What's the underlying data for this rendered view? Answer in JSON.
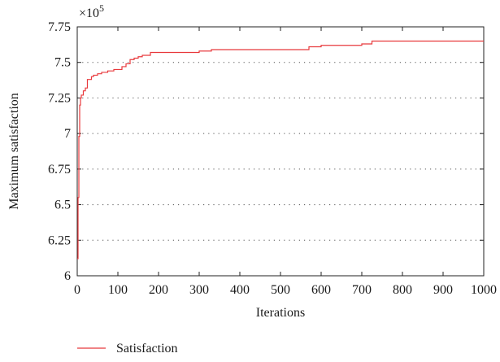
{
  "chart_data": {
    "type": "line",
    "xlabel": "Iterations",
    "ylabel": "Maximum satisfaction",
    "y_multiplier": "×10^5",
    "xlim": [
      0,
      1000
    ],
    "ylim": [
      6,
      7.75
    ],
    "x_ticks": [
      0,
      100,
      200,
      300,
      400,
      500,
      600,
      700,
      800,
      900,
      1000
    ],
    "x_tick_labels": [
      "0",
      "100",
      "200",
      "300",
      "400",
      "500",
      "600",
      "700",
      "800",
      "900",
      "1000"
    ],
    "y_ticks": [
      6,
      6.25,
      6.5,
      6.75,
      7,
      7.25,
      7.5,
      7.75
    ],
    "y_tick_labels": [
      "6",
      "6.25",
      "6.5",
      "6.75",
      "7",
      "7.25",
      "7.5",
      "7.75"
    ],
    "grid": "horizontal-dotted",
    "legend_position": "bottom-left",
    "series": [
      {
        "name": "Satisfaction",
        "color": "#e8393c",
        "step": true,
        "x": [
          0,
          2,
          4,
          6,
          8,
          10,
          15,
          20,
          25,
          30,
          35,
          40,
          50,
          60,
          75,
          90,
          110,
          120,
          130,
          140,
          150,
          160,
          180,
          200,
          300,
          330,
          400,
          570,
          580,
          600,
          700,
          725,
          800,
          1000
        ],
        "y": [
          6.12,
          6.55,
          6.98,
          7.2,
          7.25,
          7.27,
          7.3,
          7.32,
          7.38,
          7.38,
          7.4,
          7.41,
          7.42,
          7.43,
          7.44,
          7.45,
          7.47,
          7.49,
          7.52,
          7.53,
          7.54,
          7.55,
          7.57,
          7.57,
          7.58,
          7.59,
          7.59,
          7.61,
          7.61,
          7.62,
          7.63,
          7.65,
          7.65,
          7.65
        ]
      }
    ]
  }
}
